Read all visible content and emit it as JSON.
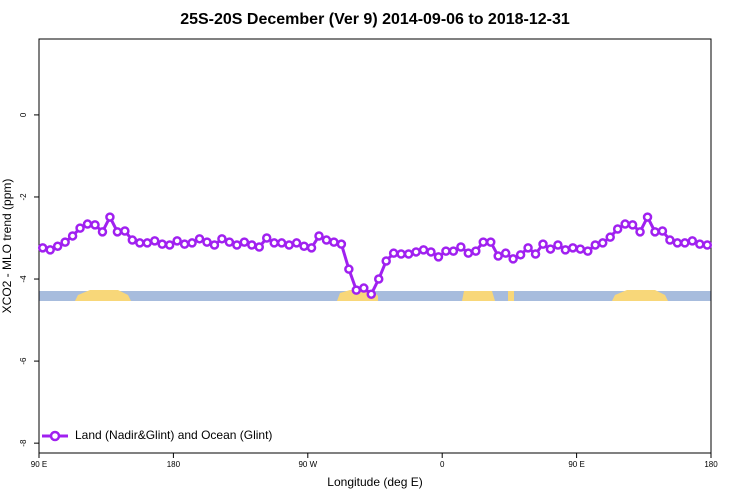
{
  "chart_data": {
    "type": "line",
    "title": "25S-20S December (Ver 9)   2014-09-06 to 2018-12-31",
    "x_label": "Longitude (deg E)",
    "y_label": "XCO2 - MLO trend (ppm)",
    "xlim": [
      90,
      540
    ],
    "ylim": [
      -8.24,
      1.85
    ],
    "xticks": [
      {
        "value": 90,
        "label": "90 E"
      },
      180,
      {
        "value": 270,
        "label": "90 W"
      },
      {
        "value": 360,
        "label": "0"
      },
      {
        "value": 450,
        "label": "90 E"
      },
      {
        "value": 540,
        "label": "180"
      }
    ],
    "yticks": [
      0,
      -2,
      -4,
      -6,
      -8
    ],
    "legend": "bottom-left",
    "x": [
      92.5,
      97.5,
      102.5,
      107.5,
      112.5,
      117.5,
      122.5,
      127.5,
      132.5,
      137.5,
      142.5,
      147.5,
      152.5,
      157.5,
      162.5,
      167.5,
      172.5,
      177.5,
      182.5,
      187.5,
      192.5,
      197.5,
      202.5,
      207.5,
      212.5,
      217.5,
      222.5,
      227.5,
      232.5,
      237.5,
      242.5,
      247.5,
      252.5,
      257.5,
      262.5,
      267.5,
      272.5,
      277.5,
      282.5,
      287.5,
      292.5,
      297.5,
      302.5,
      307.5,
      312.5,
      317.5,
      322.5,
      327.5,
      332.5,
      337.5,
      342.5,
      347.5,
      352.5,
      357.5,
      362.5,
      367.5,
      372.5,
      377.5,
      382.5,
      387.5,
      392.5,
      397.5,
      402.5,
      407.5,
      412.5,
      417.5,
      422.5,
      427.5,
      432.5,
      437.5,
      442.5,
      447.5,
      452.5,
      457.5,
      462.5,
      467.5,
      472.5,
      477.5,
      482.5,
      487.5,
      492.5,
      497.5,
      502.5,
      507.5,
      512.5,
      517.5,
      522.5,
      527.5,
      532.5,
      537.5
    ],
    "series": [
      {
        "name": "Land (Nadir&Glint) and Ocean (Glint)",
        "color": "#a020f0",
        "values": [
          -3.24,
          -3.29,
          -3.2,
          -3.1,
          -2.95,
          -2.76,
          -2.66,
          -2.68,
          -2.85,
          -2.49,
          -2.85,
          -2.83,
          -3.05,
          -3.12,
          -3.12,
          -3.07,
          -3.15,
          -3.17,
          -3.07,
          -3.15,
          -3.12,
          -3.02,
          -3.1,
          -3.17,
          -3.02,
          -3.1,
          -3.17,
          -3.1,
          -3.17,
          -3.22,
          -3.0,
          -3.12,
          -3.12,
          -3.17,
          -3.12,
          -3.2,
          -3.24,
          -2.95,
          -3.05,
          -3.1,
          -3.15,
          -3.76,
          -4.27,
          -4.22,
          -4.37,
          -4.0,
          -3.56,
          -3.37,
          -3.39,
          -3.39,
          -3.34,
          -3.29,
          -3.34,
          -3.46,
          -3.32,
          -3.32,
          -3.22,
          -3.37,
          -3.32,
          -3.1,
          -3.1,
          -3.44,
          -3.37,
          -3.51,
          -3.41,
          -3.24,
          -3.39,
          -3.15,
          -3.27,
          -3.17,
          -3.29,
          -3.24,
          -3.27,
          -3.32,
          -3.17,
          -3.12,
          -2.98,
          -2.78,
          -2.66,
          -2.68,
          -2.85,
          -2.49,
          -2.85,
          -2.83,
          -3.05,
          -3.12,
          -3.12,
          -3.07,
          -3.15,
          -3.17
        ]
      }
    ]
  }
}
